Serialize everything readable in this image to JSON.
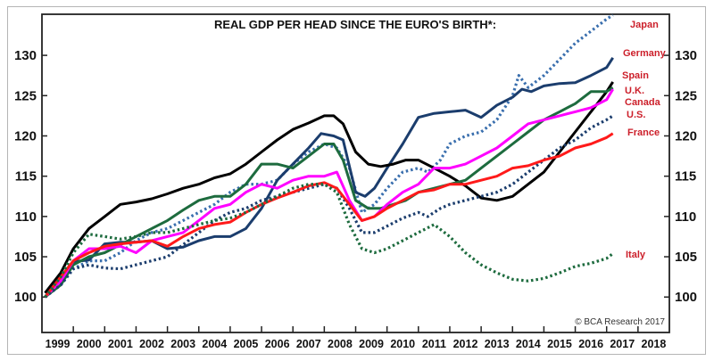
{
  "chart_data": {
    "type": "line",
    "title": "REAL GDP PER HEAD SINCE THE EURO'S BIRTH*:",
    "xlabel": "",
    "ylabel": "",
    "xlim": [
      1999,
      2019
    ],
    "ylim": [
      95.6,
      135.1
    ],
    "grid": false,
    "legend_placement": "right (inline labels at line ends)",
    "source": "© BCA Research 2017",
    "x_tick_labels": [
      "1999",
      "2000",
      "2001",
      "2002",
      "2003",
      "2004",
      "2005",
      "2006",
      "2007",
      "2008",
      "2009",
      "2010",
      "2011",
      "2012",
      "2013",
      "2014",
      "2015",
      "2016",
      "2017",
      "2018"
    ],
    "y_ticks": [
      100,
      105,
      110,
      115,
      120,
      125,
      130
    ],
    "y_tick_labels": [
      "100",
      "105",
      "110",
      "115",
      "120",
      "125",
      "130"
    ],
    "label_color": "#cc1f2a",
    "series": [
      {
        "name": "Japan",
        "color": "#3a6fae",
        "style": "dotted",
        "x": [
          1999.1,
          1999.6,
          2000.0,
          2000.5,
          2001.0,
          2001.5,
          2002.0,
          2002.5,
          2003.0,
          2003.5,
          2004.0,
          2004.5,
          2005.0,
          2005.5,
          2006.0,
          2006.5,
          2007.0,
          2007.5,
          2008.0,
          2008.4,
          2008.8,
          2009.2,
          2009.6,
          2010.0,
          2010.5,
          2011.0,
          2011.3,
          2011.7,
          2012.0,
          2012.5,
          2013.0,
          2013.5,
          2014.0,
          2014.2,
          2014.5,
          2015.0,
          2015.5,
          2016.0,
          2016.5,
          2017.0,
          2017.2
        ],
        "y": [
          100.0,
          101.5,
          103.5,
          104.5,
          104.5,
          105.5,
          107.0,
          108.0,
          108.5,
          109.5,
          110.5,
          111.5,
          113.0,
          114.0,
          114.0,
          114.5,
          116.5,
          118.0,
          119.0,
          118.5,
          116.0,
          110.5,
          111.5,
          113.5,
          115.5,
          116.0,
          115.5,
          117.0,
          119.0,
          120.0,
          120.5,
          122.0,
          125.0,
          127.5,
          126.0,
          127.5,
          129.5,
          131.5,
          133.0,
          134.5,
          135.0
        ]
      },
      {
        "name": "Germany",
        "color": "#1b3d6d",
        "style": "solid",
        "x": [
          1999.1,
          1999.6,
          2000.0,
          2000.5,
          2001.0,
          2001.5,
          2002.0,
          2002.5,
          2003.0,
          2003.5,
          2004.0,
          2004.5,
          2005.0,
          2005.5,
          2006.0,
          2006.5,
          2007.0,
          2007.5,
          2007.9,
          2008.3,
          2008.6,
          2009.0,
          2009.3,
          2009.6,
          2010.0,
          2010.5,
          2011.0,
          2011.5,
          2012.0,
          2012.5,
          2013.0,
          2013.5,
          2014.0,
          2014.3,
          2014.6,
          2015.0,
          2015.5,
          2016.0,
          2016.5,
          2017.0,
          2017.2
        ],
        "y": [
          100.0,
          102.5,
          104.4,
          104.6,
          106.6,
          106.8,
          106.8,
          107.0,
          106.0,
          106.2,
          107.0,
          107.5,
          107.5,
          108.5,
          111.0,
          114.5,
          116.5,
          118.5,
          120.3,
          120.0,
          119.5,
          113.0,
          112.5,
          113.5,
          116.0,
          119.0,
          122.3,
          122.8,
          123.0,
          123.2,
          122.3,
          123.8,
          124.8,
          125.8,
          125.5,
          126.2,
          126.5,
          126.6,
          127.5,
          128.5,
          129.7
        ]
      },
      {
        "name": "Spain",
        "color": "#000000",
        "style": "solid",
        "x": [
          1999.1,
          1999.6,
          2000.0,
          2000.5,
          2001.0,
          2001.5,
          2002.0,
          2002.5,
          2003.0,
          2003.5,
          2004.0,
          2004.5,
          2005.0,
          2005.5,
          2006.0,
          2006.5,
          2007.0,
          2007.5,
          2008.0,
          2008.3,
          2008.6,
          2009.0,
          2009.4,
          2009.8,
          2010.2,
          2010.6,
          2011.0,
          2011.5,
          2012.0,
          2012.5,
          2013.0,
          2013.5,
          2014.0,
          2014.5,
          2015.0,
          2015.5,
          2016.0,
          2016.5,
          2017.0,
          2017.2
        ],
        "y": [
          100.5,
          103.0,
          106.0,
          108.5,
          110.0,
          111.5,
          111.8,
          112.2,
          112.8,
          113.5,
          114.0,
          114.8,
          115.3,
          116.5,
          118.0,
          119.5,
          120.8,
          121.6,
          122.5,
          122.5,
          121.5,
          118.0,
          116.5,
          116.2,
          116.5,
          117.0,
          117.0,
          116.0,
          115.0,
          113.8,
          112.3,
          112.0,
          112.5,
          114.0,
          115.5,
          118.0,
          120.5,
          123.0,
          125.5,
          126.7
        ]
      },
      {
        "name": "U.K.",
        "color": "#1d6b3e",
        "style": "solid",
        "x": [
          1999.1,
          1999.6,
          2000.0,
          2000.5,
          2001.0,
          2001.5,
          2002.0,
          2002.5,
          2003.0,
          2003.5,
          2004.0,
          2004.5,
          2005.0,
          2005.5,
          2006.0,
          2006.5,
          2007.0,
          2007.5,
          2008.0,
          2008.3,
          2008.6,
          2009.0,
          2009.4,
          2009.8,
          2010.2,
          2010.6,
          2011.0,
          2011.5,
          2012.0,
          2012.5,
          2013.0,
          2013.5,
          2014.0,
          2014.5,
          2015.0,
          2015.5,
          2016.0,
          2016.5,
          2017.0,
          2017.2
        ],
        "y": [
          100.0,
          101.5,
          104.0,
          105.0,
          105.5,
          106.5,
          107.5,
          108.5,
          109.5,
          110.8,
          112.0,
          112.5,
          112.5,
          114.0,
          116.5,
          116.5,
          116.0,
          117.5,
          119.0,
          119.0,
          117.0,
          112.0,
          111.0,
          111.0,
          111.5,
          112.0,
          113.0,
          113.5,
          114.0,
          114.5,
          116.0,
          117.5,
          119.0,
          120.5,
          122.0,
          123.0,
          124.0,
          125.5,
          125.5,
          126.0
        ]
      },
      {
        "name": "Canada",
        "color": "#ff00ff",
        "style": "solid",
        "x": [
          1999.1,
          1999.6,
          2000.0,
          2000.5,
          2001.0,
          2001.5,
          2002.0,
          2002.5,
          2003.0,
          2003.5,
          2004.0,
          2004.5,
          2005.0,
          2005.5,
          2006.0,
          2006.5,
          2007.0,
          2007.5,
          2008.0,
          2008.4,
          2008.8,
          2009.2,
          2009.6,
          2010.0,
          2010.5,
          2011.0,
          2011.5,
          2012.0,
          2012.5,
          2013.0,
          2013.5,
          2014.0,
          2014.5,
          2015.0,
          2015.5,
          2016.0,
          2016.5,
          2017.0,
          2017.2
        ],
        "y": [
          100.0,
          102.0,
          104.5,
          106.0,
          106.0,
          106.3,
          105.5,
          107.0,
          107.5,
          108.0,
          109.5,
          111.0,
          111.5,
          113.0,
          114.0,
          113.5,
          114.5,
          115.0,
          115.0,
          115.5,
          112.0,
          109.5,
          110.0,
          111.5,
          113.0,
          114.0,
          116.0,
          116.0,
          116.5,
          117.5,
          118.5,
          120.0,
          121.5,
          122.0,
          122.5,
          123.0,
          123.5,
          124.5,
          125.8
        ]
      },
      {
        "name": "U.S.",
        "color": "#1b3d6d",
        "style": "dotted",
        "x": [
          1999.1,
          1999.6,
          2000.0,
          2000.5,
          2001.0,
          2001.5,
          2002.0,
          2002.5,
          2003.0,
          2003.5,
          2004.0,
          2004.5,
          2005.0,
          2005.5,
          2006.0,
          2006.5,
          2007.0,
          2007.5,
          2008.0,
          2008.4,
          2008.8,
          2009.2,
          2009.6,
          2010.0,
          2010.5,
          2011.0,
          2011.3,
          2011.7,
          2012.0,
          2012.5,
          2013.0,
          2013.5,
          2014.0,
          2014.5,
          2015.0,
          2015.5,
          2016.0,
          2016.5,
          2017.0,
          2017.2
        ],
        "y": [
          100.0,
          101.5,
          103.5,
          104.0,
          103.6,
          103.5,
          104.0,
          104.5,
          105.0,
          106.5,
          108.0,
          109.5,
          110.5,
          111.0,
          112.0,
          112.5,
          113.0,
          113.5,
          114.0,
          113.5,
          111.0,
          108.0,
          108.0,
          108.8,
          109.8,
          110.5,
          110.0,
          111.0,
          111.5,
          112.0,
          112.5,
          113.0,
          114.0,
          115.5,
          117.0,
          118.5,
          119.5,
          121.0,
          122.0,
          122.5
        ]
      },
      {
        "name": "France",
        "color": "#ff1a1a",
        "style": "solid",
        "x": [
          1999.1,
          1999.6,
          2000.0,
          2000.5,
          2001.0,
          2001.5,
          2002.0,
          2002.5,
          2003.0,
          2003.5,
          2004.0,
          2004.5,
          2005.0,
          2005.5,
          2006.0,
          2006.5,
          2007.0,
          2007.5,
          2008.0,
          2008.4,
          2008.8,
          2009.2,
          2009.6,
          2010.0,
          2010.5,
          2011.0,
          2011.5,
          2012.0,
          2012.5,
          2013.0,
          2013.5,
          2014.0,
          2014.5,
          2015.0,
          2015.5,
          2016.0,
          2016.5,
          2017.0,
          2017.2
        ],
        "y": [
          100.0,
          102.5,
          104.5,
          105.5,
          106.3,
          106.6,
          106.8,
          107.0,
          106.3,
          107.5,
          108.5,
          109.0,
          109.3,
          110.5,
          111.5,
          112.3,
          113.0,
          113.8,
          114.2,
          113.5,
          111.5,
          109.5,
          110.0,
          111.0,
          112.0,
          113.0,
          113.3,
          114.0,
          114.0,
          114.5,
          115.0,
          116.0,
          116.3,
          117.0,
          117.5,
          118.5,
          119.0,
          119.8,
          120.3
        ]
      },
      {
        "name": "Italy",
        "color": "#1d6b3e",
        "style": "dotted",
        "x": [
          1999.1,
          1999.6,
          2000.0,
          2000.5,
          2001.0,
          2001.5,
          2002.0,
          2002.5,
          2003.0,
          2003.5,
          2004.0,
          2004.5,
          2005.0,
          2005.5,
          2006.0,
          2006.5,
          2007.0,
          2007.5,
          2008.0,
          2008.4,
          2008.8,
          2009.2,
          2009.6,
          2010.0,
          2010.5,
          2011.0,
          2011.5,
          2012.0,
          2012.5,
          2013.0,
          2013.5,
          2014.0,
          2014.5,
          2015.0,
          2015.5,
          2016.0,
          2016.5,
          2017.0,
          2017.2
        ],
        "y": [
          100.0,
          102.5,
          105.5,
          107.8,
          107.5,
          107.2,
          107.5,
          108.0,
          108.0,
          108.5,
          109.0,
          109.5,
          109.8,
          110.5,
          111.5,
          112.5,
          113.5,
          114.0,
          114.0,
          113.0,
          109.0,
          106.0,
          105.5,
          106.0,
          107.0,
          108.0,
          109.0,
          107.5,
          105.5,
          104.0,
          103.0,
          102.2,
          102.0,
          102.3,
          103.0,
          103.8,
          104.2,
          104.8,
          105.4
        ]
      }
    ],
    "legend": [
      {
        "name": "Japan"
      },
      {
        "name": "Germany"
      },
      {
        "name": "Spain"
      },
      {
        "name": "U.K."
      },
      {
        "name": "Canada"
      },
      {
        "name": "U.S."
      },
      {
        "name": "France"
      },
      {
        "name": "Italy"
      }
    ]
  }
}
